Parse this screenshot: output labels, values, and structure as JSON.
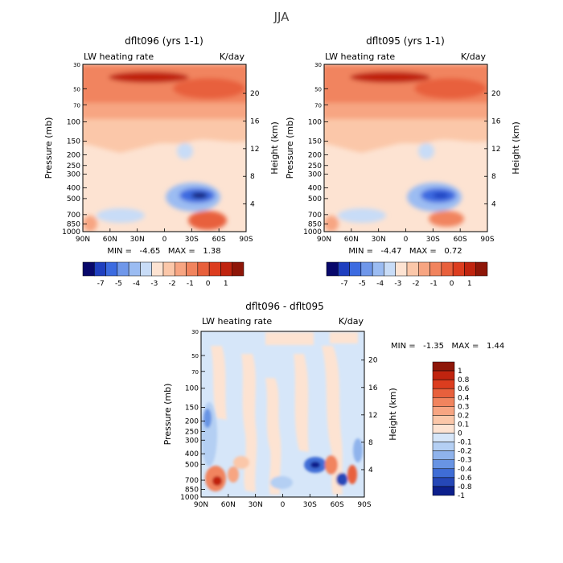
{
  "season": "JJA",
  "chart_data": [
    {
      "type": "heatmap",
      "title": "dflt096 (yrs 1-1)",
      "subtitle_left": "LW heating rate",
      "subtitle_right": "K/day",
      "xlabel": "",
      "ylabel": "Pressure (mb)",
      "ylabel_right": "Height (km)",
      "x_ticks": [
        "90N",
        "60N",
        "30N",
        "0",
        "30S",
        "60S",
        "90S"
      ],
      "y_ticks": [
        "30",
        "50",
        "70",
        "100",
        "150",
        "200",
        "250",
        "300",
        "400",
        "500",
        "700",
        "850",
        "1000"
      ],
      "y_right_ticks": [
        "20",
        "16",
        "12",
        "8",
        "4"
      ],
      "ylim": [
        1000,
        30
      ],
      "y_scale": "log",
      "stats": "MIN =   -4.65   MAX =   1.38",
      "colorbar_labels": [
        "-7",
        "-5",
        "-4",
        "-3",
        "-2",
        "-1",
        "0",
        "1"
      ],
      "colorbar_colors": [
        "#08086b",
        "#1f3fbf",
        "#3c6be0",
        "#6f97ea",
        "#9bbcf2",
        "#c8dcf7",
        "#fde3d2",
        "#fbc7a9",
        "#f7a582",
        "#f1845e",
        "#e8603c",
        "#dc3d1f",
        "#c0240f",
        "#8e1608"
      ],
      "region_levels": {
        "stratosphere_band": -2.2,
        "upper_heating": 0.6,
        "upper_max": 1.1,
        "midlevel": -1.4,
        "lowlevel_min": -4.6,
        "surface_heating": 0.8
      }
    },
    {
      "type": "heatmap",
      "title": "dflt095 (yrs 1-1)",
      "subtitle_left": "LW heating rate",
      "subtitle_right": "K/day",
      "xlabel": "",
      "ylabel": "Pressure (mb)",
      "ylabel_right": "Height (km)",
      "x_ticks": [
        "90N",
        "60N",
        "30N",
        "0",
        "30S",
        "60S",
        "90S"
      ],
      "y_ticks": [
        "30",
        "50",
        "70",
        "100",
        "150",
        "200",
        "250",
        "300",
        "400",
        "500",
        "700",
        "850",
        "1000"
      ],
      "y_right_ticks": [
        "20",
        "16",
        "12",
        "8",
        "4"
      ],
      "ylim": [
        1000,
        30
      ],
      "y_scale": "log",
      "stats": "MIN =   -4.47   MAX =   0.72",
      "colorbar_labels": [
        "-7",
        "-5",
        "-4",
        "-3",
        "-2",
        "-1",
        "0",
        "1"
      ],
      "colorbar_colors": [
        "#08086b",
        "#1f3fbf",
        "#3c6be0",
        "#6f97ea",
        "#9bbcf2",
        "#c8dcf7",
        "#fde3d2",
        "#fbc7a9",
        "#f7a582",
        "#f1845e",
        "#e8603c",
        "#dc3d1f",
        "#c0240f",
        "#8e1608"
      ],
      "region_levels": {
        "stratosphere_band": -2.2,
        "upper_heating": 0.5,
        "upper_max": 0.7,
        "midlevel": -1.4,
        "lowlevel_min": -4.4,
        "surface_heating": 0.6
      }
    },
    {
      "type": "heatmap",
      "title": "dflt096 - dflt095",
      "subtitle_left": "LW heating rate",
      "subtitle_right": "K/day",
      "xlabel": "",
      "ylabel": "Pressure (mb)",
      "ylabel_right": "Height (km)",
      "x_ticks": [
        "90N",
        "60N",
        "30N",
        "0",
        "30S",
        "60S",
        "90S"
      ],
      "y_ticks": [
        "30",
        "50",
        "70",
        "100",
        "150",
        "200",
        "250",
        "300",
        "400",
        "500",
        "700",
        "850",
        "1000"
      ],
      "y_right_ticks": [
        "20",
        "16",
        "12",
        "8",
        "4"
      ],
      "ylim": [
        1000,
        30
      ],
      "y_scale": "log",
      "stats": "MIN =   -1.35   MAX =   1.44",
      "colorbar_labels": [
        "1",
        "0.8",
        "0.6",
        "0.4",
        "0.3",
        "0.2",
        "0.1",
        "0",
        "-0.1",
        "-0.2",
        "-0.3",
        "-0.4",
        "-0.6",
        "-0.8",
        "-1"
      ],
      "colorbar_colors": [
        "#8e1608",
        "#c0240f",
        "#dc3d1f",
        "#e8603c",
        "#f1845e",
        "#f7a582",
        "#fbc7a9",
        "#fde3d2",
        "#d6e6f9",
        "#b4cff3",
        "#8fb3ec",
        "#6894e4",
        "#3f6dd6",
        "#2547b7",
        "#0c1f8c"
      ],
      "background_level": -0.05
    }
  ]
}
